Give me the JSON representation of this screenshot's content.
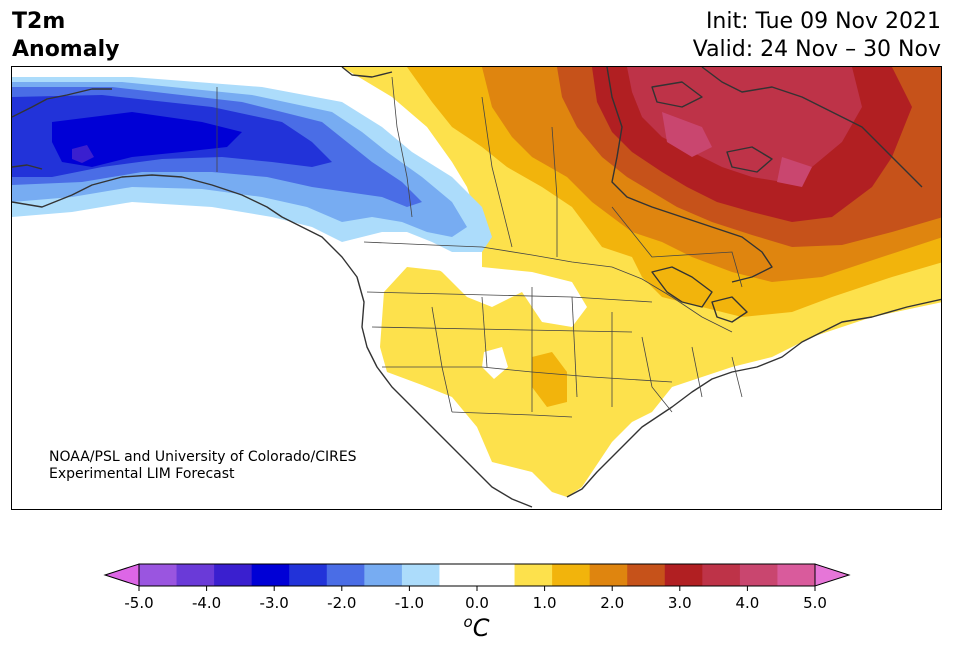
{
  "header": {
    "title_line1": "T2m",
    "title_line2": "Anomaly",
    "init_line": "Init: Tue 09 Nov 2021",
    "valid_line": "Valid: 24 Nov – 30 Nov"
  },
  "credit": {
    "line1": "NOAA/PSL and University of Colorado/CIRES",
    "line2": "Experimental LIM Forecast"
  },
  "colorbar": {
    "ticks": [
      "-5.0",
      "-4.0",
      "-3.0",
      "-2.0",
      "-1.0",
      "0.0",
      "1.0",
      "2.0",
      "3.0",
      "4.0",
      "5.0"
    ],
    "tick_values": [
      -5,
      -4,
      -3,
      -2,
      -1,
      0,
      1,
      2,
      3,
      4,
      5
    ],
    "unit_super": "o",
    "unit_main": "C",
    "below_color": "#dd66e6",
    "above_color": "#e676d8",
    "colors": [
      "#9a55e0",
      "#6a3ad8",
      "#3a1fcf",
      "#0000d6",
      "#2233d9",
      "#4a6de6",
      "#77acf2",
      "#acdcfb",
      "#ffffff",
      "#ffffff",
      "#fde14c",
      "#f2b40c",
      "#df850f",
      "#c6521a",
      "#b11f22",
      "#be3348",
      "#c9466f",
      "#d95b9c"
    ]
  },
  "map": {
    "region": "North America",
    "field": "2m temperature anomaly"
  }
}
